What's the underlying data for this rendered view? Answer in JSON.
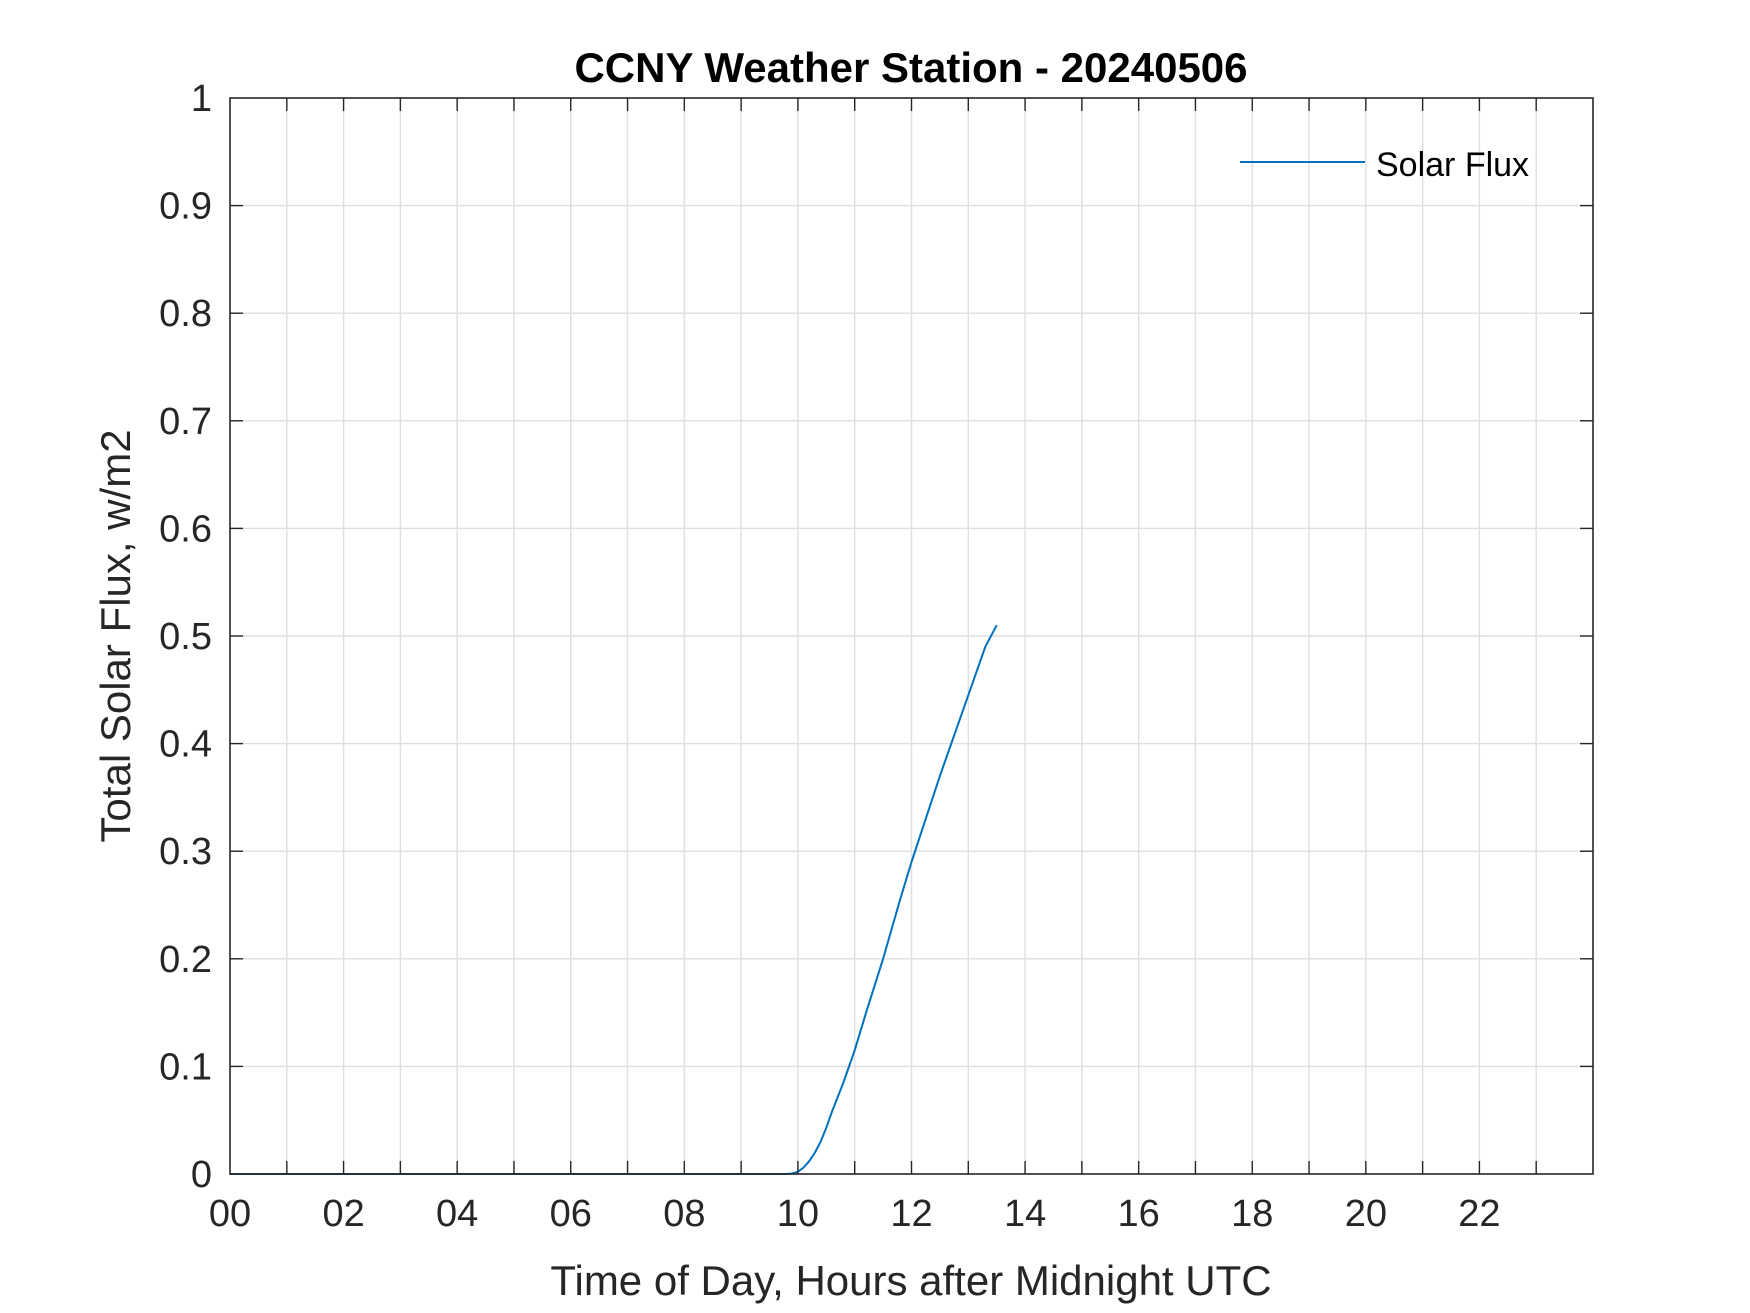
{
  "chart_data": {
    "type": "line",
    "title": "CCNY Weather Station - 20240506",
    "xlabel": "Time of Day, Hours after Midnight UTC",
    "ylabel": "Total Solar Flux, w/m2",
    "xlim": [
      0,
      24
    ],
    "ylim": [
      0,
      1
    ],
    "x_ticks": [
      0,
      2,
      4,
      6,
      8,
      10,
      12,
      14,
      16,
      18,
      20,
      22
    ],
    "x_tick_labels": [
      "00",
      "02",
      "04",
      "06",
      "08",
      "10",
      "12",
      "14",
      "16",
      "18",
      "20",
      "22"
    ],
    "y_ticks": [
      0,
      0.1,
      0.2,
      0.3,
      0.4,
      0.5,
      0.6,
      0.7,
      0.8,
      0.9,
      1
    ],
    "y_tick_labels": [
      "0",
      "0.1",
      "0.2",
      "0.3",
      "0.4",
      "0.5",
      "0.6",
      "0.7",
      "0.8",
      "0.9",
      "1"
    ],
    "grid": true,
    "minor_x_grid_step": 1,
    "legend_position": "top-right",
    "series": [
      {
        "name": "Solar Flux",
        "color": "#0072BD",
        "x": [
          0,
          9.8,
          9.9,
          10.0,
          10.1,
          10.2,
          10.3,
          10.4,
          10.5,
          10.6,
          10.8,
          11.0,
          11.2,
          11.5,
          11.8,
          12.0,
          12.5,
          13.0,
          13.3,
          13.5
        ],
        "y": [
          0,
          0,
          0.0005,
          0.002,
          0.006,
          0.012,
          0.02,
          0.03,
          0.043,
          0.058,
          0.085,
          0.115,
          0.15,
          0.2,
          0.255,
          0.29,
          0.37,
          0.445,
          0.49,
          0.51
        ]
      }
    ]
  }
}
